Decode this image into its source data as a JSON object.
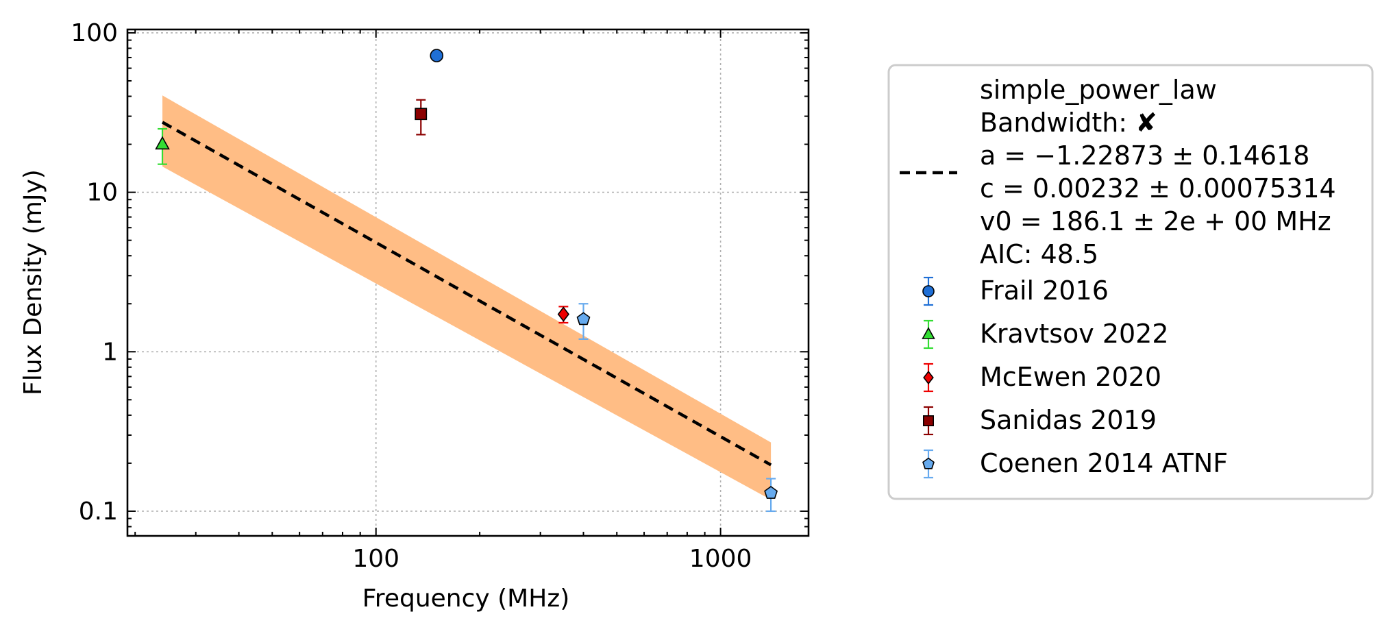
{
  "chart_data": {
    "type": "scatter",
    "title": "",
    "xlabel": "Frequency (MHz)",
    "ylabel": "Flux Density (mJy)",
    "xscale": "log",
    "yscale": "log",
    "xlim": [
      19,
      1800
    ],
    "ylim": [
      0.07,
      105
    ],
    "grid": true,
    "legend_placement": "outside-right",
    "x_ticks": [
      {
        "value": 100,
        "label": "100"
      },
      {
        "value": 1000,
        "label": "1000"
      }
    ],
    "y_ticks": [
      {
        "value": 0.1,
        "label": "0.1"
      },
      {
        "value": 1,
        "label": "1"
      },
      {
        "value": 10,
        "label": "10"
      },
      {
        "value": 100,
        "label": "100"
      }
    ],
    "fit": {
      "name": "simple_power_law",
      "legend_lines": [
        "simple_power_law",
        "Bandwidth: ✘",
        "a = −1.22873 ± 0.14618",
        "c = 0.00232 ± 0.00075314",
        "v0 = 186.1 ± 2e + 00 MHz",
        "AIC: 48.5"
      ],
      "line": {
        "x": [
          24,
          1400
        ],
        "y": [
          27.5,
          0.195
        ]
      },
      "band_upper": {
        "x": [
          24,
          1400
        ],
        "y": [
          40.5,
          0.27
        ]
      },
      "band_lower": {
        "x": [
          24,
          1400
        ],
        "y": [
          14.5,
          0.118
        ]
      },
      "line_color": "#000000",
      "band_color": "#ffbd85"
    },
    "series": [
      {
        "name": "Frail 2016",
        "marker": "circle",
        "color": "#1f6fd6",
        "err_color": "#1f6fd6",
        "points": [
          {
            "x": 150,
            "y": 72,
            "err_low": 0,
            "err_high": 0
          }
        ]
      },
      {
        "name": "Kravtsov 2022",
        "marker": "triangle",
        "color": "#33dd33",
        "err_color": "#33dd33",
        "points": [
          {
            "x": 24,
            "y": 20,
            "err_low": 5,
            "err_high": 5
          }
        ]
      },
      {
        "name": "McEwen 2020",
        "marker": "diamond",
        "color": "#ee0000",
        "err_color": "#ee0000",
        "points": [
          {
            "x": 350,
            "y": 1.72,
            "err_low": 0.2,
            "err_high": 0.2
          }
        ]
      },
      {
        "name": "Sanidas 2019",
        "marker": "square",
        "color": "#8b0000",
        "err_color": "#8b0000",
        "points": [
          {
            "x": 135,
            "y": 31,
            "err_low": 8,
            "err_high": 7
          }
        ]
      },
      {
        "name": "Coenen 2014 ATNF",
        "marker": "pentagon",
        "color": "#66aaee",
        "err_color": "#66aaee",
        "points": [
          {
            "x": 400,
            "y": 1.6,
            "err_low": 0.4,
            "err_high": 0.4
          },
          {
            "x": 1400,
            "y": 0.13,
            "err_low": 0.03,
            "err_high": 0.03
          }
        ]
      }
    ]
  }
}
